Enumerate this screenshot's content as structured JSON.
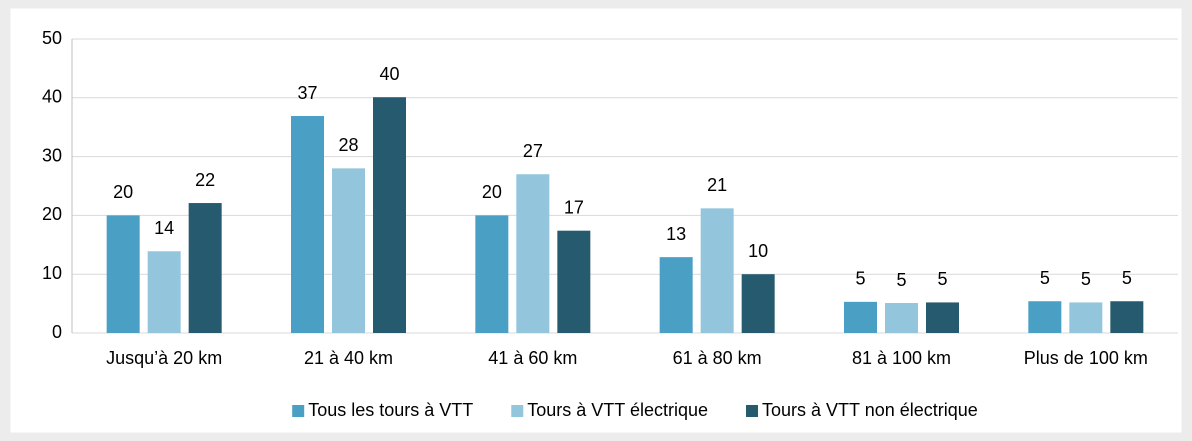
{
  "chart_data": {
    "type": "bar",
    "categories": [
      "Jusqu’à 20 km",
      "21 à 40 km",
      "41 à 60 km",
      "61 à 80 km",
      "81 à 100 km",
      "Plus de 100 km"
    ],
    "series": [
      {
        "name": "Tous les tours à VTT",
        "color": "#4a9fc4",
        "values": [
          20,
          36.9,
          20,
          12.9,
          5.3,
          5.4
        ],
        "value_labels": [
          "20",
          "37",
          "20",
          "13",
          "5",
          "5"
        ]
      },
      {
        "name": "Tours à VTT électrique",
        "color": "#93c6dc",
        "values": [
          13.9,
          28,
          27,
          21.2,
          5.1,
          5.2
        ],
        "value_labels": [
          "14",
          "28",
          "27",
          "21",
          "5",
          "5"
        ]
      },
      {
        "name": "Tours à VTT non électrique",
        "color": "#265a6e",
        "values": [
          22.1,
          40.1,
          17.4,
          10,
          5.2,
          5.4
        ],
        "value_labels": [
          "22",
          "40",
          "17",
          "10",
          "5",
          "5"
        ]
      }
    ],
    "ylim": [
      0,
      50
    ],
    "yticks": [
      0,
      10,
      20,
      30,
      40,
      50
    ],
    "grid": true,
    "legend": "bottom"
  }
}
